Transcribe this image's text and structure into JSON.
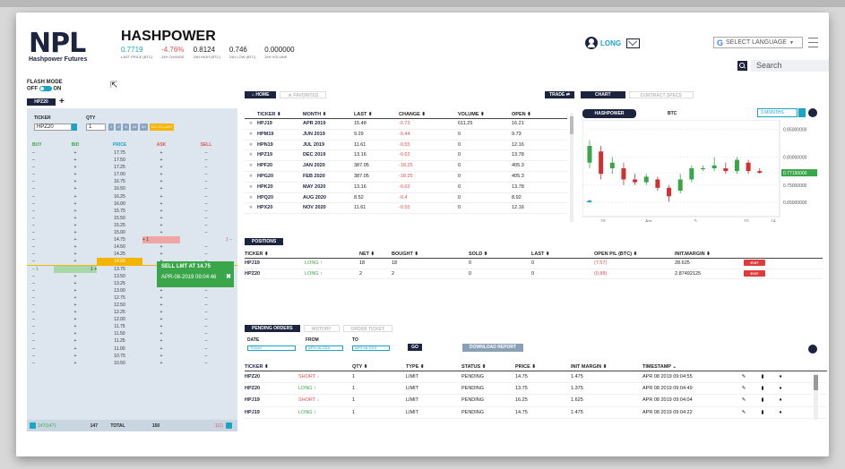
{
  "app": {
    "logo": "NPL",
    "logo_sub": "Hashpower Futures",
    "title": "HASHPOWER"
  },
  "stats": [
    {
      "value": "0.7719",
      "label": "LAST PRICE (BTC)",
      "color": "#19a5c8"
    },
    {
      "value": "-4.76%",
      "label": "24H CHANGE",
      "color": "#e05252"
    },
    {
      "value": "0.8124",
      "label": "24H HIGH (BTC)",
      "color": "#222"
    },
    {
      "value": "0.746",
      "label": "24H LOW (BTC)",
      "color": "#222"
    },
    {
      "value": "0.000000",
      "label": "24H VOLUME",
      "color": "#222"
    }
  ],
  "header": {
    "long_label": "LONG",
    "language": "SELECT LANGUAGE",
    "lang_arrow": "▼",
    "search_placeholder": "Search"
  },
  "flash": {
    "title": "FLASH MODE",
    "off": "OFF",
    "on": "ON"
  },
  "ladder": {
    "tab": "HPZ20",
    "plus": "+",
    "ticker_label": "TICKER",
    "ticker_value": "HPZ20",
    "qty_label": "QTY",
    "qty_value": "1",
    "qty_buttons": [
      "1",
      "2",
      "5",
      "10",
      "20"
    ],
    "to_last": "GO TO LAST",
    "headers": [
      "BUY",
      "BID",
      "PRICE",
      "ASK",
      "SELL"
    ],
    "rows": [
      [
        "–",
        "+",
        "17.75",
        "+",
        "–"
      ],
      [
        "–",
        "+",
        "17.50",
        "+",
        "–"
      ],
      [
        "–",
        "+",
        "17.25",
        "+",
        "–"
      ],
      [
        "–",
        "+",
        "17.00",
        "+",
        "–"
      ],
      [
        "–",
        "+",
        "16.75",
        "+",
        "–"
      ],
      [
        "–",
        "+",
        "16.50",
        "+",
        "–"
      ],
      [
        "–",
        "+",
        "16.25",
        "+",
        "–"
      ],
      [
        "–",
        "+",
        "16.00",
        "+",
        "–"
      ],
      [
        "–",
        "+",
        "15.75",
        "+",
        "–"
      ],
      [
        "–",
        "+",
        "15.50",
        "+",
        "–"
      ],
      [
        "–",
        "+",
        "15.25",
        "+",
        "–"
      ],
      [
        "–",
        "+",
        "15.00",
        "+",
        "–"
      ],
      [
        "–",
        "+",
        "14.75",
        "+ 1",
        "1 –"
      ],
      [
        "–",
        "+",
        "14.50",
        "+",
        "–"
      ],
      [
        "–",
        "+",
        "14.25",
        "+",
        "–"
      ],
      [
        "–",
        "+",
        "14.00",
        "+",
        "–"
      ],
      [
        "– 1",
        "1 +",
        "13.75",
        "+",
        "–"
      ],
      [
        "–",
        "+",
        "13.50",
        "+",
        "–"
      ],
      [
        "–",
        "+",
        "13.25",
        "+",
        "–"
      ],
      [
        "–",
        "+",
        "13.00",
        "+",
        "–"
      ],
      [
        "–",
        "+",
        "12.75",
        "+",
        "–"
      ],
      [
        "–",
        "+",
        "12.50",
        "+",
        "–"
      ],
      [
        "–",
        "+",
        "12.25",
        "+",
        "–"
      ],
      [
        "–",
        "+",
        "12.00",
        "+",
        "–"
      ],
      [
        "–",
        "+",
        "11.75",
        "+",
        "–"
      ],
      [
        "–",
        "+",
        "11.50",
        "+",
        "–"
      ],
      [
        "–",
        "+",
        "11.25",
        "+",
        "–"
      ],
      [
        "–",
        "+",
        "11.00",
        "+",
        "–"
      ],
      [
        "–",
        "+",
        "10.75",
        "+",
        "–"
      ],
      [
        "–",
        "+",
        "10.50",
        "+",
        "–"
      ]
    ],
    "footer": {
      "buy": "147(147)",
      "bid": "147",
      "price": "TOTAL",
      "ask": "150",
      "sell": "1(1)"
    }
  },
  "popup": {
    "title": "SELL LMT AT 14.75",
    "time": "APR-08-2019 09:04:46",
    "close": "✖"
  },
  "market": {
    "tabs": [
      "HOME",
      "FAVORITES"
    ],
    "trade": "TRADE",
    "headers": [
      "TICKER ⬍",
      "MONTH ⬍",
      "LAST ⬍",
      "CHANGE ⬍",
      "VOLUME ⬍",
      "OPEN ⬍"
    ],
    "rows": [
      [
        "HPJ19",
        "APR 2019",
        "15.48",
        "-0.73",
        "611.25",
        "16.21"
      ],
      [
        "HPM19",
        "JUN 2019",
        "9.29",
        "-0.44",
        "0",
        "9.73"
      ],
      [
        "HPN19",
        "JUL 2019",
        "11.61",
        "-0.55",
        "0",
        "12.16"
      ],
      [
        "HPZ19",
        "DEC 2019",
        "13.16",
        "-0.62",
        "0",
        "13.78"
      ],
      [
        "HPF20",
        "JAN 2020",
        "387.05",
        "-18.25",
        "0",
        "405.3"
      ],
      [
        "HPG20",
        "FEB 2020",
        "387.05",
        "-18.25",
        "0",
        "405.3"
      ],
      [
        "HPK20",
        "MAY 2020",
        "13.16",
        "-0.62",
        "0",
        "13.78"
      ],
      [
        "HPQ20",
        "AUG 2020",
        "8.52",
        "-0.4",
        "0",
        "8.92"
      ],
      [
        "HPX20",
        "NOV 2020",
        "11.61",
        "-0.55",
        "0",
        "12.16"
      ]
    ],
    "star": "★"
  },
  "chart_panel": {
    "tabs": [
      "CHART",
      "CONTRACT SPECS"
    ],
    "series_btn": "HASHPOWER",
    "btc": "BTC",
    "range": "3 MONTHS"
  },
  "chart_data": {
    "type": "candlestick",
    "y_ticks": [
      "0.85000000",
      "0.80000000",
      "0.77190000",
      "0.75000000",
      "0.65000000"
    ],
    "x_ticks": [
      "29",
      "Apr",
      "5",
      "10",
      "14"
    ],
    "last": "0.77190000",
    "candles": [
      {
        "o": 0.79,
        "c": 0.82,
        "h": 0.83,
        "l": 0.78,
        "up": true
      },
      {
        "o": 0.81,
        "c": 0.77,
        "h": 0.82,
        "l": 0.76,
        "up": false
      },
      {
        "o": 0.78,
        "c": 0.79,
        "h": 0.8,
        "l": 0.77,
        "up": true
      },
      {
        "o": 0.78,
        "c": 0.76,
        "h": 0.79,
        "l": 0.75,
        "up": false
      },
      {
        "o": 0.76,
        "c": 0.755,
        "h": 0.77,
        "l": 0.75,
        "up": false
      },
      {
        "o": 0.755,
        "c": 0.765,
        "h": 0.77,
        "l": 0.75,
        "up": true
      },
      {
        "o": 0.76,
        "c": 0.745,
        "h": 0.765,
        "l": 0.74,
        "up": false
      },
      {
        "o": 0.745,
        "c": 0.73,
        "h": 0.75,
        "l": 0.72,
        "up": false
      },
      {
        "o": 0.74,
        "c": 0.76,
        "h": 0.77,
        "l": 0.735,
        "up": true
      },
      {
        "o": 0.76,
        "c": 0.78,
        "h": 0.785,
        "l": 0.755,
        "up": true
      },
      {
        "o": 0.78,
        "c": 0.78,
        "h": 0.785,
        "l": 0.775,
        "up": true
      },
      {
        "o": 0.78,
        "c": 0.785,
        "h": 0.8,
        "l": 0.775,
        "up": true
      },
      {
        "o": 0.78,
        "c": 0.775,
        "h": 0.79,
        "l": 0.77,
        "up": false
      },
      {
        "o": 0.775,
        "c": 0.795,
        "h": 0.8,
        "l": 0.77,
        "up": true
      },
      {
        "o": 0.79,
        "c": 0.775,
        "h": 0.795,
        "l": 0.77,
        "up": false
      },
      {
        "o": 0.775,
        "c": 0.772,
        "h": 0.78,
        "l": 0.77,
        "up": false
      }
    ]
  },
  "positions": {
    "title": "POSITIONS",
    "headers": [
      "TICKER ⬍",
      "",
      "NET ⬍",
      "BOUGHT ⬍",
      "SOLD ⬍",
      "LAST ⬍",
      "OPEN P/L (BTC) ⬍",
      "INIT.MARGIN ⬍",
      ""
    ],
    "rows": [
      [
        "HPJ19",
        "LONG ↑",
        "18",
        "18",
        "0",
        "0",
        "(7.57)",
        "28.625",
        "EXIT"
      ],
      [
        "HPZ20",
        "LONG ↑",
        "2",
        "2",
        "0",
        "0",
        "(0.88)",
        "2.87492125",
        "EXIT"
      ]
    ]
  },
  "orders": {
    "tabs": [
      "PENDING ORDERS",
      "HISTORY",
      "ORDER TICKET"
    ],
    "date_label": "DATE",
    "date_value": "TODAY",
    "from_label": "FROM",
    "from_value": "APR-08-2019",
    "to_label": "TO",
    "to_value": "APR-08-2019",
    "go": "GO",
    "download": "DOWNLOAD REPORT",
    "headers": [
      "TICKER ⬍",
      "",
      "QTY ⬍",
      "TYPE ⬍",
      "STATUS ⬍",
      "PRICE ⬍",
      "INIT MARGIN ⬍",
      "TIMESTAMP ⌄",
      "",
      "",
      ""
    ],
    "rows": [
      [
        "HPZ20",
        "SHORT ↓",
        "1",
        "LIMIT",
        "PENDING",
        "14.75",
        "1.475",
        "APR 08 2019 09:04:55"
      ],
      [
        "HPZ20",
        "LONG ↑",
        "1",
        "LIMIT",
        "PENDING",
        "13.75",
        "1.375",
        "APR 08 2019 09:04:49"
      ],
      [
        "HPJ19",
        "SHORT ↓",
        "1",
        "LIMIT",
        "PENDING",
        "16.25",
        "1.625",
        "APR 08 2019 09:04:04"
      ],
      [
        "HPJ19",
        "LONG ↑",
        "1",
        "LIMIT",
        "PENDING",
        "14.75",
        "1.475",
        "APR 08 2019 09:04:22"
      ]
    ]
  }
}
